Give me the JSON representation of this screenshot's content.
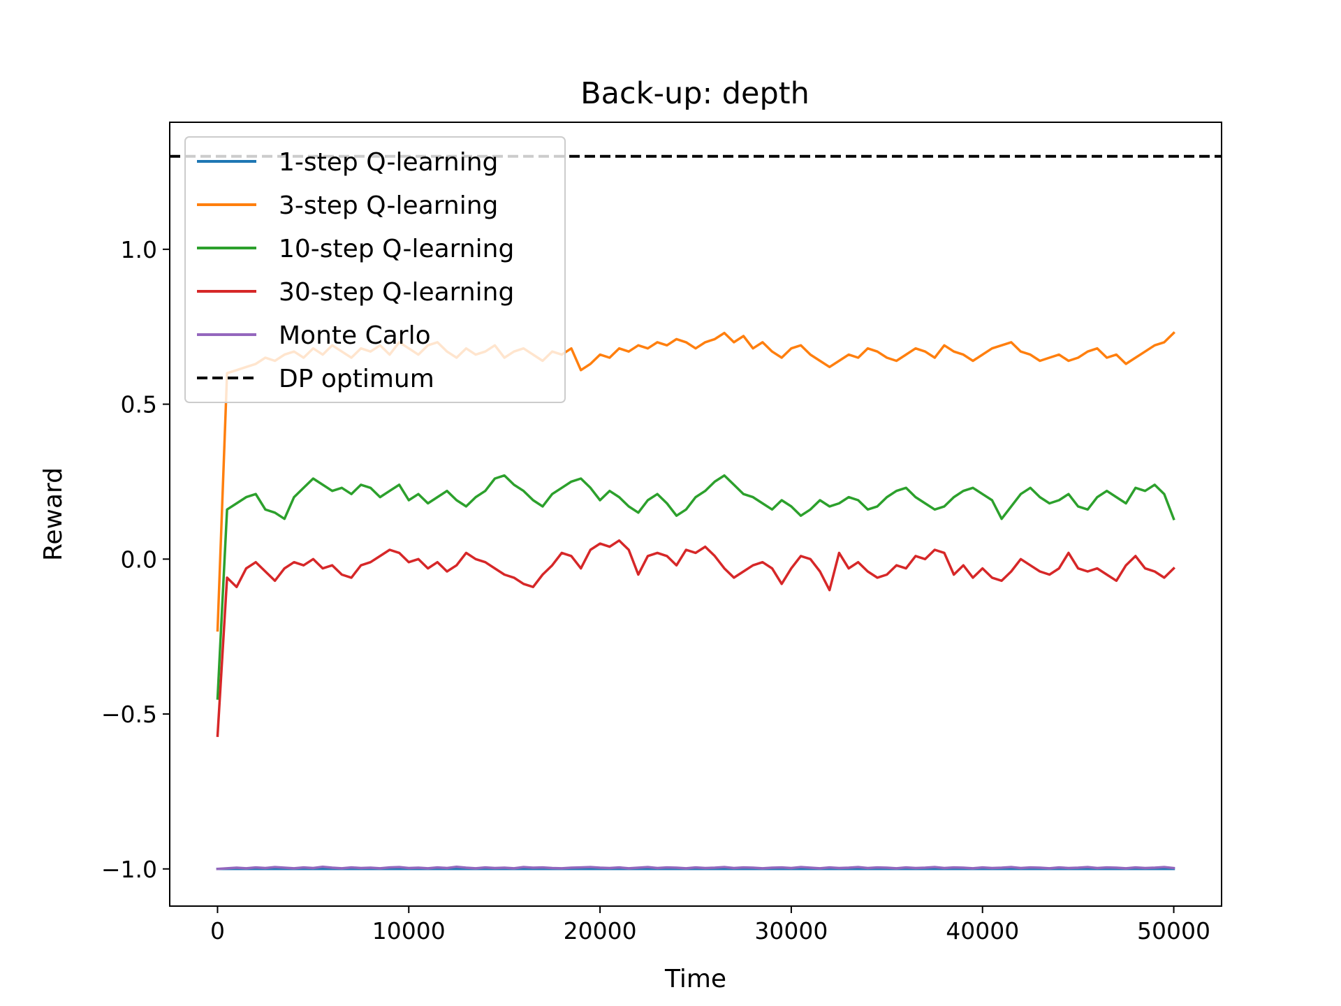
{
  "chart_data": {
    "type": "line",
    "title": "Back-up: depth",
    "xlabel": "Time",
    "ylabel": "Reward",
    "xlim": [
      -2500,
      52500
    ],
    "ylim": [
      -1.12,
      1.41
    ],
    "xticks": [
      0,
      10000,
      20000,
      30000,
      40000,
      50000
    ],
    "xtick_labels": [
      "0",
      "10000",
      "20000",
      "30000",
      "40000",
      "50000"
    ],
    "yticks": [
      -1.0,
      -0.5,
      0.0,
      0.5,
      1.0
    ],
    "ytick_labels": [
      "−1.0",
      "−0.5",
      "0.0",
      "0.5",
      "1.0"
    ],
    "grid": false,
    "legend_position": "upper-left",
    "x_step": 500,
    "series": [
      {
        "name": "1-step Q-learning",
        "color": "#1f77b4",
        "style": "solid",
        "values": [
          -1.0,
          -1.0,
          -1.0,
          -1.0,
          -1.0,
          -1.0,
          -1.0,
          -1.0,
          -1.0,
          -1.0,
          -1.0,
          -1.0,
          -1.0,
          -1.0,
          -1.0,
          -1.0,
          -1.0,
          -1.0,
          -1.0,
          -1.0,
          -1.0,
          -1.0,
          -1.0,
          -1.0,
          -1.0,
          -1.0,
          -1.0,
          -1.0,
          -1.0,
          -1.0,
          -1.0,
          -1.0,
          -1.0,
          -1.0,
          -1.0,
          -1.0,
          -1.0,
          -1.0,
          -1.0,
          -1.0,
          -1.0,
          -1.0,
          -1.0,
          -1.0,
          -1.0,
          -1.0,
          -1.0,
          -1.0,
          -1.0,
          -1.0,
          -1.0,
          -1.0,
          -1.0,
          -1.0,
          -1.0,
          -1.0,
          -1.0,
          -1.0,
          -1.0,
          -1.0,
          -1.0,
          -1.0,
          -1.0,
          -1.0,
          -1.0,
          -1.0,
          -1.0,
          -1.0,
          -1.0,
          -1.0,
          -1.0,
          -1.0,
          -1.0,
          -1.0,
          -1.0,
          -1.0,
          -1.0,
          -1.0,
          -1.0,
          -1.0,
          -1.0,
          -1.0,
          -1.0,
          -1.0,
          -1.0,
          -1.0,
          -1.0,
          -1.0,
          -1.0,
          -1.0,
          -1.0,
          -1.0,
          -1.0,
          -1.0,
          -1.0,
          -1.0,
          -1.0,
          -1.0,
          -1.0,
          -1.0,
          -1.0
        ]
      },
      {
        "name": "3-step Q-learning",
        "color": "#ff7f0e",
        "style": "solid",
        "values": [
          -0.23,
          0.6,
          0.61,
          0.62,
          0.63,
          0.65,
          0.64,
          0.66,
          0.67,
          0.65,
          0.68,
          0.66,
          0.69,
          0.67,
          0.65,
          0.68,
          0.67,
          0.69,
          0.66,
          0.7,
          0.68,
          0.66,
          0.69,
          0.7,
          0.67,
          0.65,
          0.68,
          0.66,
          0.67,
          0.69,
          0.65,
          0.67,
          0.68,
          0.66,
          0.64,
          0.67,
          0.66,
          0.68,
          0.61,
          0.63,
          0.66,
          0.65,
          0.68,
          0.67,
          0.69,
          0.68,
          0.7,
          0.69,
          0.71,
          0.7,
          0.68,
          0.7,
          0.71,
          0.73,
          0.7,
          0.72,
          0.68,
          0.7,
          0.67,
          0.65,
          0.68,
          0.69,
          0.66,
          0.64,
          0.62,
          0.64,
          0.66,
          0.65,
          0.68,
          0.67,
          0.65,
          0.64,
          0.66,
          0.68,
          0.67,
          0.65,
          0.69,
          0.67,
          0.66,
          0.64,
          0.66,
          0.68,
          0.69,
          0.7,
          0.67,
          0.66,
          0.64,
          0.65,
          0.66,
          0.64,
          0.65,
          0.67,
          0.68,
          0.65,
          0.66,
          0.63,
          0.65,
          0.67,
          0.69,
          0.7,
          0.73
        ]
      },
      {
        "name": "10-step Q-learning",
        "color": "#2ca02c",
        "style": "solid",
        "values": [
          -0.45,
          0.16,
          0.18,
          0.2,
          0.21,
          0.16,
          0.15,
          0.13,
          0.2,
          0.23,
          0.26,
          0.24,
          0.22,
          0.23,
          0.21,
          0.24,
          0.23,
          0.2,
          0.22,
          0.24,
          0.19,
          0.21,
          0.18,
          0.2,
          0.22,
          0.19,
          0.17,
          0.2,
          0.22,
          0.26,
          0.27,
          0.24,
          0.22,
          0.19,
          0.17,
          0.21,
          0.23,
          0.25,
          0.26,
          0.23,
          0.19,
          0.22,
          0.2,
          0.17,
          0.15,
          0.19,
          0.21,
          0.18,
          0.14,
          0.16,
          0.2,
          0.22,
          0.25,
          0.27,
          0.24,
          0.21,
          0.2,
          0.18,
          0.16,
          0.19,
          0.17,
          0.14,
          0.16,
          0.19,
          0.17,
          0.18,
          0.2,
          0.19,
          0.16,
          0.17,
          0.2,
          0.22,
          0.23,
          0.2,
          0.18,
          0.16,
          0.17,
          0.2,
          0.22,
          0.23,
          0.21,
          0.19,
          0.13,
          0.17,
          0.21,
          0.23,
          0.2,
          0.18,
          0.19,
          0.21,
          0.17,
          0.16,
          0.2,
          0.22,
          0.2,
          0.18,
          0.23,
          0.22,
          0.24,
          0.21,
          0.13
        ]
      },
      {
        "name": "30-step Q-learning",
        "color": "#d62728",
        "style": "solid",
        "values": [
          -0.57,
          -0.06,
          -0.09,
          -0.03,
          -0.01,
          -0.04,
          -0.07,
          -0.03,
          -0.01,
          -0.02,
          0.0,
          -0.03,
          -0.02,
          -0.05,
          -0.06,
          -0.02,
          -0.01,
          0.01,
          0.03,
          0.02,
          -0.01,
          0.0,
          -0.03,
          -0.01,
          -0.04,
          -0.02,
          0.02,
          0.0,
          -0.01,
          -0.03,
          -0.05,
          -0.06,
          -0.08,
          -0.09,
          -0.05,
          -0.02,
          0.02,
          0.01,
          -0.03,
          0.03,
          0.05,
          0.04,
          0.06,
          0.03,
          -0.05,
          0.01,
          0.02,
          0.01,
          -0.02,
          0.03,
          0.02,
          0.04,
          0.01,
          -0.03,
          -0.06,
          -0.04,
          -0.02,
          -0.01,
          -0.03,
          -0.08,
          -0.03,
          0.01,
          0.0,
          -0.04,
          -0.1,
          0.02,
          -0.03,
          -0.01,
          -0.04,
          -0.06,
          -0.05,
          -0.02,
          -0.03,
          0.01,
          0.0,
          0.03,
          0.02,
          -0.05,
          -0.02,
          -0.06,
          -0.03,
          -0.06,
          -0.07,
          -0.04,
          0.0,
          -0.02,
          -0.04,
          -0.05,
          -0.03,
          0.02,
          -0.03,
          -0.04,
          -0.03,
          -0.05,
          -0.07,
          -0.02,
          0.01,
          -0.03,
          -0.04,
          -0.06,
          -0.03
        ]
      },
      {
        "name": "Monte Carlo",
        "color": "#9467bd",
        "style": "solid",
        "values": [
          -1.0,
          -0.998,
          -0.996,
          -0.998,
          -0.995,
          -0.997,
          -0.994,
          -0.996,
          -0.998,
          -0.995,
          -0.997,
          -0.993,
          -0.996,
          -0.998,
          -0.995,
          -0.997,
          -0.996,
          -0.998,
          -0.995,
          -0.994,
          -0.997,
          -0.996,
          -0.998,
          -0.995,
          -0.997,
          -0.993,
          -0.996,
          -0.998,
          -0.995,
          -0.997,
          -0.996,
          -0.998,
          -0.994,
          -0.996,
          -0.995,
          -0.997,
          -0.998,
          -0.996,
          -0.995,
          -0.994,
          -0.996,
          -0.997,
          -0.995,
          -0.998,
          -0.996,
          -0.994,
          -0.997,
          -0.995,
          -0.996,
          -0.998,
          -0.995,
          -0.997,
          -0.996,
          -0.994,
          -0.997,
          -0.995,
          -0.996,
          -0.998,
          -0.996,
          -0.995,
          -0.997,
          -0.994,
          -0.996,
          -0.998,
          -0.995,
          -0.997,
          -0.996,
          -0.994,
          -0.997,
          -0.995,
          -0.996,
          -0.998,
          -0.995,
          -0.997,
          -0.996,
          -0.994,
          -0.997,
          -0.995,
          -0.996,
          -0.998,
          -0.995,
          -0.997,
          -0.996,
          -0.994,
          -0.997,
          -0.995,
          -0.996,
          -0.998,
          -0.995,
          -0.997,
          -0.996,
          -0.994,
          -0.997,
          -0.995,
          -0.996,
          -0.998,
          -0.995,
          -0.997,
          -0.996,
          -0.994,
          -0.997
        ]
      },
      {
        "name": "DP optimum",
        "color": "#000000",
        "style": "dashed",
        "constant": 1.3
      }
    ]
  }
}
